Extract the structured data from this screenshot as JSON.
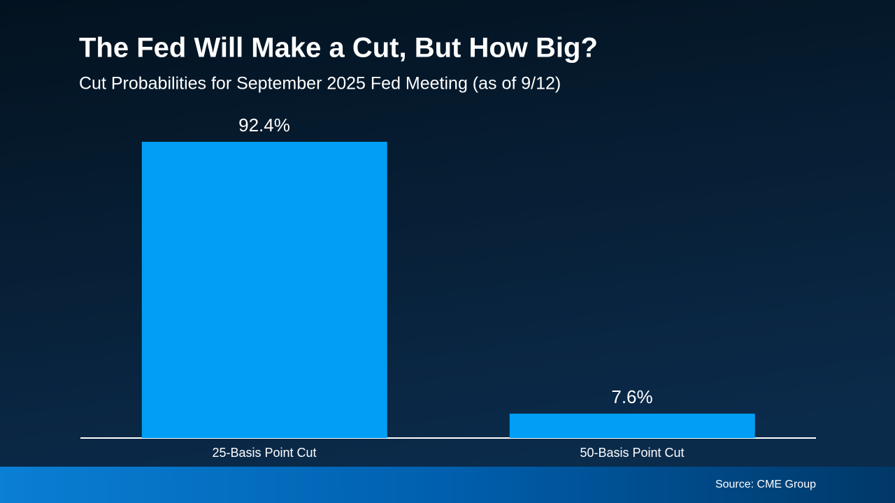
{
  "chart_data": {
    "type": "bar",
    "title": "The Fed Will Make a Cut, But How Big?",
    "subtitle": "Cut Probabilities for September 2025 Fed Meeting (as of 9/12)",
    "categories": [
      "25-Basis Point Cut",
      "50-Basis Point Cut"
    ],
    "values": [
      92.4,
      7.6
    ],
    "value_labels": [
      "92.4%",
      "7.6%"
    ],
    "color": "#009ff5",
    "source": "Source: CME Group"
  }
}
